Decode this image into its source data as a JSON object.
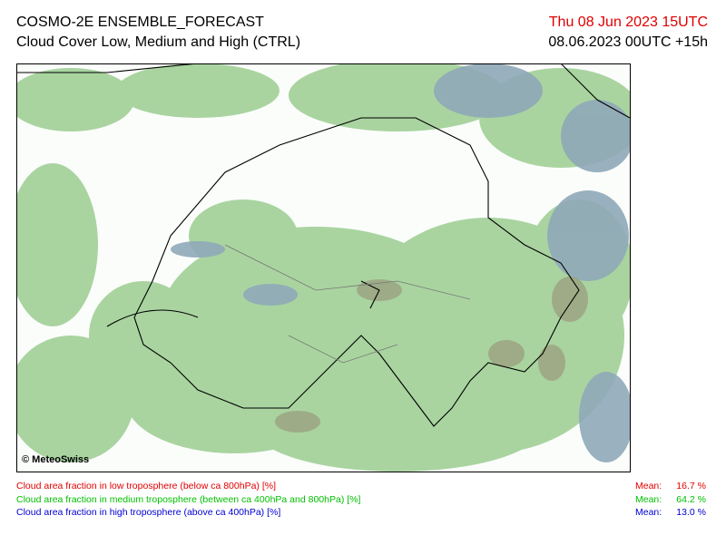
{
  "header": {
    "title": "COSMO-2E ENSEMBLE_FORECAST",
    "subtitle": "Cloud Cover Low, Medium and High (CTRL)",
    "valid_time": "Thu 08 Jun 2023 15UTC",
    "run": "08.06.2023 00UTC +15h"
  },
  "map": {
    "copyright": "© MeteoSwiss"
  },
  "legend": [
    {
      "label": "Cloud area fraction in low troposphere (below ca 800hPa) [%]",
      "mean_label": "Mean:",
      "mean": "16.7 %"
    },
    {
      "label": "Cloud area fraction in medium troposphere (between ca 400hPa and 800hPa) [%]",
      "mean_label": "Mean:",
      "mean": "64.2 %"
    },
    {
      "label": "Cloud area fraction in high troposphere (above ca 400hPa) [%]",
      "mean_label": "Mean:",
      "mean": "13.0 %"
    }
  ]
}
